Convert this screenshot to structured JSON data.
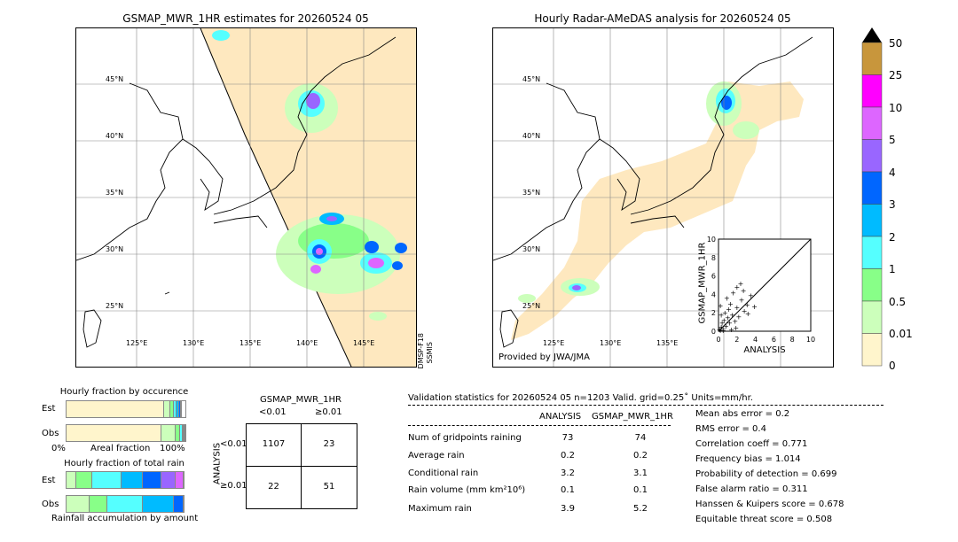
{
  "left_map": {
    "title": "GSMAP_MWR_1HR estimates for 20260524 05",
    "side_label_1": "DMSP-F18",
    "side_label_2": "SSMIS"
  },
  "right_map": {
    "title": "Hourly Radar-AMeDAS analysis for 20260524 05",
    "credit": "Provided by JWA/JMA"
  },
  "lat_labels": [
    "45°N",
    "40°N",
    "35°N",
    "30°N",
    "25°N"
  ],
  "lon_labels_left": [
    "125°E",
    "130°E",
    "135°E",
    "140°E",
    "145°E"
  ],
  "lon_labels_right": [
    "125°E",
    "130°E",
    "135°E"
  ],
  "scatter": {
    "ylabel": "GSMAP_MWR_1HR",
    "xlabel": "ANALYSIS",
    "ticks": [
      "0",
      "2",
      "4",
      "6",
      "8",
      "10"
    ],
    "ytick_top": "10"
  },
  "colorbar": {
    "labels": [
      "50",
      "25",
      "10",
      "5",
      "4",
      "3",
      "2",
      "1",
      "0.5",
      "0.01",
      "0"
    ],
    "colors": [
      "#c8963c",
      "#ff00ff",
      "#dd66ff",
      "#9966ff",
      "#0066ff",
      "#00bbff",
      "#55ffff",
      "#88ff88",
      "#ccffbb",
      "#fff5cc"
    ],
    "overflow_color": "#000000"
  },
  "occurrence": {
    "title": "Hourly fraction by occurence",
    "row_est": "Est",
    "row_obs": "Obs",
    "axis_left": "0%",
    "axis_mid": "Areal fraction",
    "axis_right": "100%",
    "est_fractions": [
      0.82,
      0.05,
      0.03,
      0.025,
      0.02,
      0.015,
      0.01
    ],
    "obs_fractions": [
      0.8,
      0.12,
      0.04,
      0.02,
      0.01,
      0.005,
      0.005
    ]
  },
  "total_rain": {
    "title": "Hourly fraction of total rain",
    "row_est": "Est",
    "row_obs": "Obs",
    "footer": "Rainfall accumulation by amount",
    "est_fractions": [
      0.08,
      0.14,
      0.25,
      0.18,
      0.16,
      0.12,
      0.07
    ],
    "obs_fractions": [
      0.2,
      0.15,
      0.3,
      0.27,
      0.08
    ]
  },
  "contingency": {
    "title": "GSMAP_MWR_1HR",
    "col1": "<0.01",
    "col2": "≥0.01",
    "row_axis": "ANALYSIS",
    "row1": "<0.01",
    "row2": "≥0.01",
    "c11": "1107",
    "c12": "23",
    "c21": "22",
    "c22": "51"
  },
  "validation": {
    "header": "Validation statistics for 20260524 05  n=1203 Valid. grid=0.25˚ Units=mm/hr.",
    "col_analysis": "ANALYSIS",
    "col_gsmap": "GSMAP_MWR_1HR",
    "rows": [
      {
        "label": "Num of gridpoints raining",
        "a": "73",
        "g": "74"
      },
      {
        "label": "Average rain",
        "a": "0.2",
        "g": "0.2"
      },
      {
        "label": "Conditional rain",
        "a": "3.2",
        "g": "3.1"
      },
      {
        "label": "Rain volume (mm km²10⁶)",
        "a": "0.1",
        "g": "0.1"
      },
      {
        "label": "Maximum rain",
        "a": "3.9",
        "g": "5.2"
      }
    ],
    "scores": [
      "Mean abs error =    0.2",
      "RMS error =    0.4",
      "Correlation coeff =  0.771",
      "Frequency bias =  1.014",
      "Probability of detection =  0.699",
      "False alarm ratio =  0.311",
      "Hanssen & Kuipers score =  0.678",
      "Equitable threat score =  0.508"
    ]
  },
  "chart_data": {
    "type": "scatter",
    "xlabel": "ANALYSIS",
    "ylabel": "GSMAP_MWR_1HR",
    "xlim": [
      0,
      10
    ],
    "ylim": [
      0,
      10
    ],
    "points": [
      [
        0.1,
        0.2
      ],
      [
        0.2,
        0.1
      ],
      [
        0.3,
        0.5
      ],
      [
        0.5,
        0.3
      ],
      [
        0.4,
        0.9
      ],
      [
        0.6,
        1.2
      ],
      [
        0.8,
        0.6
      ],
      [
        1.0,
        1.5
      ],
      [
        1.2,
        0.9
      ],
      [
        0.7,
        2.0
      ],
      [
        1.5,
        1.8
      ],
      [
        1.8,
        1.1
      ],
      [
        2.0,
        2.6
      ],
      [
        2.2,
        1.6
      ],
      [
        1.3,
        3.0
      ],
      [
        2.5,
        3.4
      ],
      [
        1.6,
        4.2
      ],
      [
        2.8,
        2.2
      ],
      [
        3.1,
        2.9
      ],
      [
        2.0,
        4.8
      ],
      [
        3.5,
        3.9
      ],
      [
        3.9,
        2.7
      ],
      [
        0.9,
        3.6
      ],
      [
        2.4,
        5.2
      ],
      [
        0.3,
        1.8
      ],
      [
        1.1,
        2.4
      ],
      [
        0.5,
        0.1
      ],
      [
        3.2,
        1.9
      ],
      [
        1.9,
        0.4
      ],
      [
        2.7,
        4.4
      ],
      [
        0.2,
        2.8
      ],
      [
        1.4,
        0.2
      ]
    ]
  }
}
